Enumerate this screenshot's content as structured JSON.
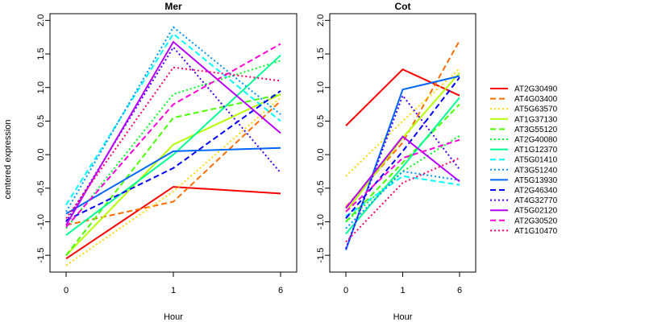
{
  "chart_data": {
    "type": "line",
    "ylabel": "centered expression",
    "x": [
      "0",
      "1",
      "6"
    ],
    "ylim": [
      -1.75,
      2.1
    ],
    "yticks": [
      -1.5,
      -1.0,
      -0.5,
      0.0,
      0.5,
      1.0,
      1.5,
      2.0
    ],
    "yticklabels": [
      "-1.5",
      "-1.0",
      "-0.5",
      "0.0",
      "0.5",
      "1.0",
      "1.5",
      "2.0"
    ],
    "grid": false,
    "legend_position": "right",
    "legend": [
      {
        "name": "AT2G30490",
        "color": "#FF0000",
        "dash": "solid"
      },
      {
        "name": "AT4G03400",
        "color": "#FF6D00",
        "dash": "dashed"
      },
      {
        "name": "AT5G63570",
        "color": "#FFDB00",
        "dash": "dotted"
      },
      {
        "name": "AT1G37130",
        "color": "#B6FF00",
        "dash": "solid"
      },
      {
        "name": "AT3G55120",
        "color": "#49FF00",
        "dash": "dashed"
      },
      {
        "name": "AT2G40080",
        "color": "#00FF24",
        "dash": "dotted"
      },
      {
        "name": "AT1G12370",
        "color": "#00FF92",
        "dash": "solid"
      },
      {
        "name": "AT5G01410",
        "color": "#00FFFF",
        "dash": "dashed"
      },
      {
        "name": "AT3G51240",
        "color": "#0092FF",
        "dash": "dotted"
      },
      {
        "name": "AT5G13930",
        "color": "#0066FF",
        "dash": "solid"
      },
      {
        "name": "AT2G46340",
        "color": "#0000FF",
        "dash": "dashed"
      },
      {
        "name": "AT4G32770",
        "color": "#4900FF",
        "dash": "dotted"
      },
      {
        "name": "AT5G02120",
        "color": "#B600FF",
        "dash": "solid"
      },
      {
        "name": "AT2G30520",
        "color": "#FF00DB",
        "dash": "dashed"
      },
      {
        "name": "AT1G10470",
        "color": "#FF006D",
        "dash": "dotted"
      }
    ],
    "panels": [
      {
        "title": "Mer",
        "xlabel": "Hour",
        "series": [
          {
            "name": "AT2G30490",
            "values": [
              -1.55,
              -0.48,
              -0.58
            ]
          },
          {
            "name": "AT4G03400",
            "values": [
              -1.05,
              -0.7,
              0.8
            ]
          },
          {
            "name": "AT5G63570",
            "values": [
              -1.65,
              -0.55,
              0.85
            ]
          },
          {
            "name": "AT1G37130",
            "values": [
              -1.5,
              0.15,
              0.9
            ]
          },
          {
            "name": "AT3G55120",
            "values": [
              -1.5,
              0.55,
              0.9
            ]
          },
          {
            "name": "AT2G40080",
            "values": [
              -1.1,
              0.9,
              1.4
            ]
          },
          {
            "name": "AT1G12370",
            "values": [
              -1.2,
              0.0,
              1.48
            ]
          },
          {
            "name": "AT5G01410",
            "values": [
              -0.75,
              1.8,
              0.5
            ]
          },
          {
            "name": "AT3G51240",
            "values": [
              -0.85,
              1.9,
              0.6
            ]
          },
          {
            "name": "AT5G13930",
            "values": [
              -0.88,
              0.05,
              0.1
            ]
          },
          {
            "name": "AT2G46340",
            "values": [
              -0.98,
              -0.2,
              0.95
            ]
          },
          {
            "name": "AT4G32770",
            "values": [
              -1.0,
              1.6,
              -0.27
            ]
          },
          {
            "name": "AT5G02120",
            "values": [
              -1.05,
              1.68,
              0.32
            ]
          },
          {
            "name": "AT2G30520",
            "values": [
              -1.08,
              0.75,
              1.65
            ]
          },
          {
            "name": "AT1G10470",
            "values": [
              -0.95,
              1.3,
              1.1
            ]
          }
        ]
      },
      {
        "title": "Cot",
        "xlabel": "Hour",
        "series": [
          {
            "name": "AT2G30490",
            "values": [
              0.43,
              1.27,
              0.88
            ]
          },
          {
            "name": "AT4G03400",
            "values": [
              -0.78,
              0.18,
              1.7
            ]
          },
          {
            "name": "AT5G63570",
            "values": [
              -0.32,
              0.5,
              1.28
            ]
          },
          {
            "name": "AT1G37130",
            "values": [
              -0.85,
              0.25,
              1.22
            ]
          },
          {
            "name": "AT3G55120",
            "values": [
              -1.0,
              -0.12,
              0.75
            ]
          },
          {
            "name": "AT2G40080",
            "values": [
              -1.0,
              -0.25,
              0.28
            ]
          },
          {
            "name": "AT1G12370",
            "values": [
              -1.18,
              -0.18,
              0.85
            ]
          },
          {
            "name": "AT5G01410",
            "values": [
              -0.92,
              -0.32,
              -0.45
            ]
          },
          {
            "name": "AT3G51240",
            "values": [
              -1.1,
              -0.25,
              -0.38
            ]
          },
          {
            "name": "AT5G13930",
            "values": [
              -1.42,
              0.97,
              1.17
            ]
          },
          {
            "name": "AT2G46340",
            "values": [
              -0.95,
              0.05,
              1.15
            ]
          },
          {
            "name": "AT4G32770",
            "values": [
              -1.4,
              0.88,
              -0.22
            ]
          },
          {
            "name": "AT5G02120",
            "values": [
              -0.8,
              0.27,
              -0.4
            ]
          },
          {
            "name": "AT2G30520",
            "values": [
              -0.85,
              -0.05,
              0.22
            ]
          },
          {
            "name": "AT1G10470",
            "values": [
              -1.3,
              -0.42,
              -0.05
            ]
          }
        ]
      }
    ]
  }
}
